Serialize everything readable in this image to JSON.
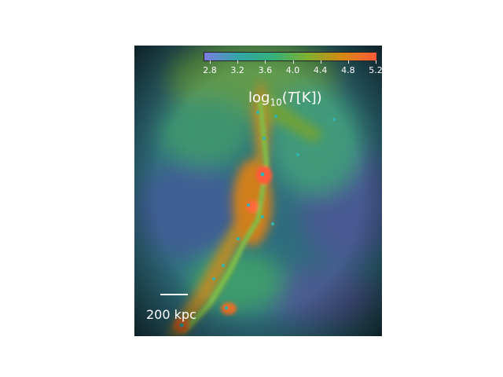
{
  "colorbar": {
    "ticks": [
      "2.8",
      "3.2",
      "3.6",
      "4.0",
      "4.4",
      "4.8",
      "5.2"
    ],
    "label_prefix": "log",
    "label_sub": "10",
    "label_open": "(",
    "label_var": "T",
    "label_unit": "[K])",
    "colors": [
      "#7b7de0",
      "#32a7a6",
      "#34b07a",
      "#7fb030",
      "#d48a12",
      "#ff5a3a"
    ]
  },
  "scalebar": {
    "label": "200 kpc"
  }
}
